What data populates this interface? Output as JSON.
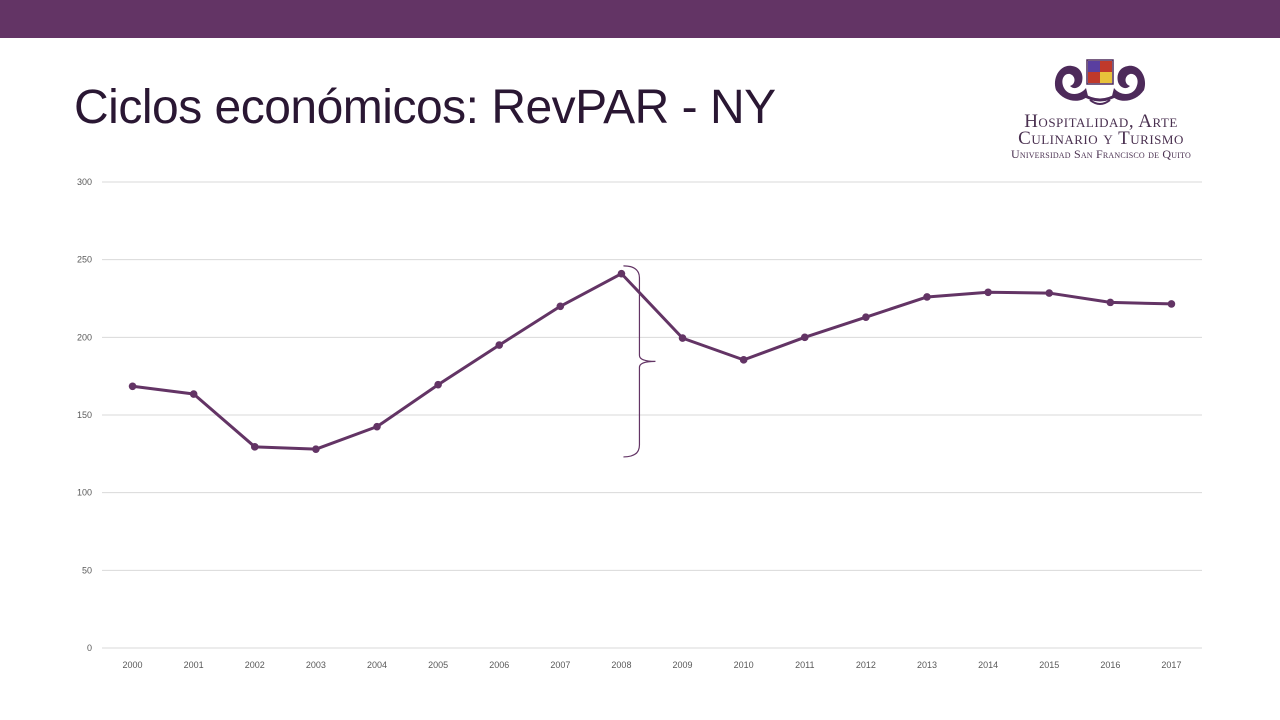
{
  "slide": {
    "title": "Ciclos económicos: RevPAR - NY",
    "colors": {
      "top_bar": "#633465",
      "series": "#633465",
      "grid": "#d9d9d9"
    }
  },
  "logo": {
    "line1": "Hospitalidad, Arte",
    "line2": "Culinario y Turismo",
    "line3": "Universidad San Francisco de Quito"
  },
  "chart_data": {
    "type": "line",
    "x": [
      "2000",
      "2001",
      "2002",
      "2003",
      "2004",
      "2005",
      "2006",
      "2007",
      "2008",
      "2009",
      "2010",
      "2011",
      "2012",
      "2013",
      "2014",
      "2015",
      "2016",
      "2017"
    ],
    "series": [
      {
        "values": [
          168.5,
          163.5,
          129.5,
          128,
          142.5,
          169.5,
          195,
          220,
          241,
          199.5,
          185.5,
          200,
          213,
          226,
          229,
          228.5,
          222.5,
          221.5
        ]
      }
    ],
    "ylim": [
      0,
      300
    ],
    "yticks": [
      "0",
      "50",
      "100",
      "150",
      "200",
      "250",
      "300"
    ],
    "grid": true,
    "legend": false,
    "annotation": {
      "type": "bracket",
      "from_value": 123,
      "to_value": 246,
      "at_category": "2008"
    }
  }
}
